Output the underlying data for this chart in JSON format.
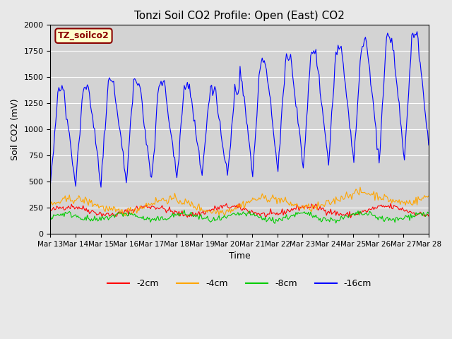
{
  "title": "Tonzi Soil CO2 Profile: Open (East) CO2",
  "ylabel": "Soil CO2 (mV)",
  "xlabel": "Time",
  "label_text": "TZ_soilco2",
  "ylim": [
    0,
    2000
  ],
  "xlim": [
    0,
    360
  ],
  "background_color": "#e8e8e8",
  "plot_bg_color": "#d8d8d8",
  "legend_labels": [
    "-2cm",
    "-4cm",
    "-8cm",
    "-16cm"
  ],
  "legend_colors": [
    "#ff0000",
    "#ffa500",
    "#00cc00",
    "#0000ff"
  ],
  "xtick_labels": [
    "Mar 13",
    "Mar 14",
    "Mar 15",
    "Mar 16",
    "Mar 17",
    "Mar 18",
    "Mar 19",
    "Mar 20",
    "Mar 21",
    "Mar 22",
    "Mar 23",
    "Mar 24",
    "Mar 25",
    "Mar 26",
    "Mar 27",
    "Mar 28"
  ],
  "n_points": 360,
  "seed": 42
}
